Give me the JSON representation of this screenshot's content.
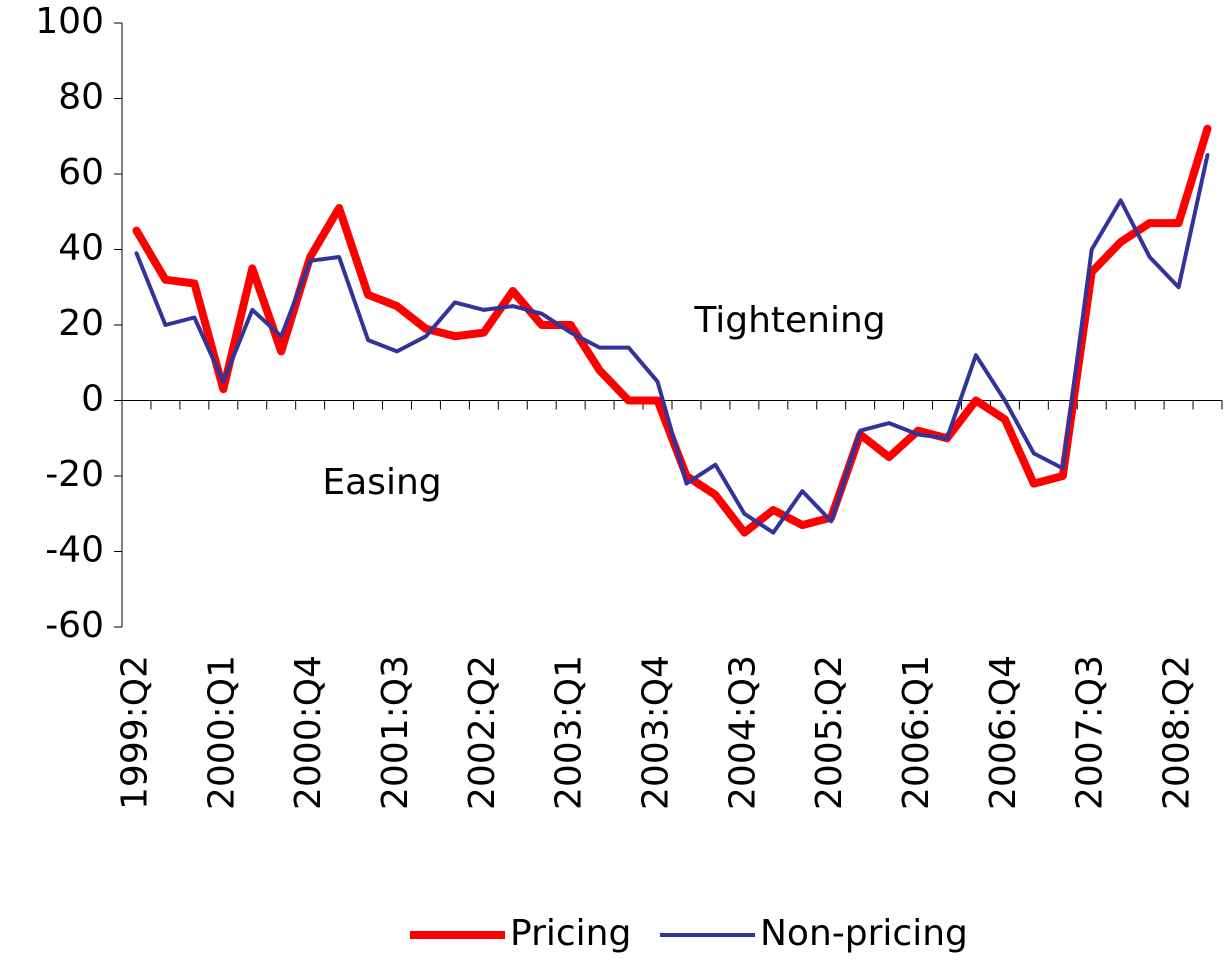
{
  "chart_data": {
    "type": "line",
    "categories": [
      "1999:Q2",
      null,
      null,
      "2000:Q1",
      null,
      null,
      "2000:Q4",
      null,
      null,
      "2001:Q3",
      null,
      null,
      "2002:Q2",
      null,
      null,
      "2003:Q1",
      null,
      null,
      "2003:Q4",
      null,
      null,
      "2004:Q3",
      null,
      null,
      "2005:Q2",
      null,
      null,
      "2006:Q1",
      null,
      null,
      "2006:Q4",
      null,
      null,
      "2007:Q3",
      null,
      null,
      "2008:Q2",
      null
    ],
    "series": [
      {
        "name": "Pricing",
        "color": "#ff0000",
        "values": [
          45,
          32,
          31,
          3,
          35,
          13,
          38,
          51,
          28,
          25,
          19,
          17,
          18,
          29,
          20,
          20,
          8,
          0,
          0,
          -20,
          -25,
          -35,
          -29,
          -33,
          -31,
          -9,
          -15,
          -8,
          -10,
          0,
          -5,
          -22,
          -20,
          34,
          42,
          47,
          47,
          72
        ]
      },
      {
        "name": "Non-pricing",
        "color": "#333399",
        "values": [
          39,
          20,
          22,
          5,
          24,
          17,
          37,
          38,
          16,
          13,
          17,
          26,
          24,
          25,
          23,
          18,
          14,
          14,
          5,
          -22,
          -17,
          -30,
          -35,
          -24,
          -32,
          -8,
          -6,
          -9,
          -10,
          12,
          0,
          -14,
          -18,
          40,
          53,
          38,
          30,
          65
        ]
      }
    ],
    "ylim": [
      -60,
      100
    ],
    "yticks": [
      -60,
      -40,
      -20,
      0,
      20,
      40,
      60,
      80,
      100
    ],
    "annotations": [
      "Tightening",
      "Easing"
    ],
    "legend": "bottom"
  }
}
